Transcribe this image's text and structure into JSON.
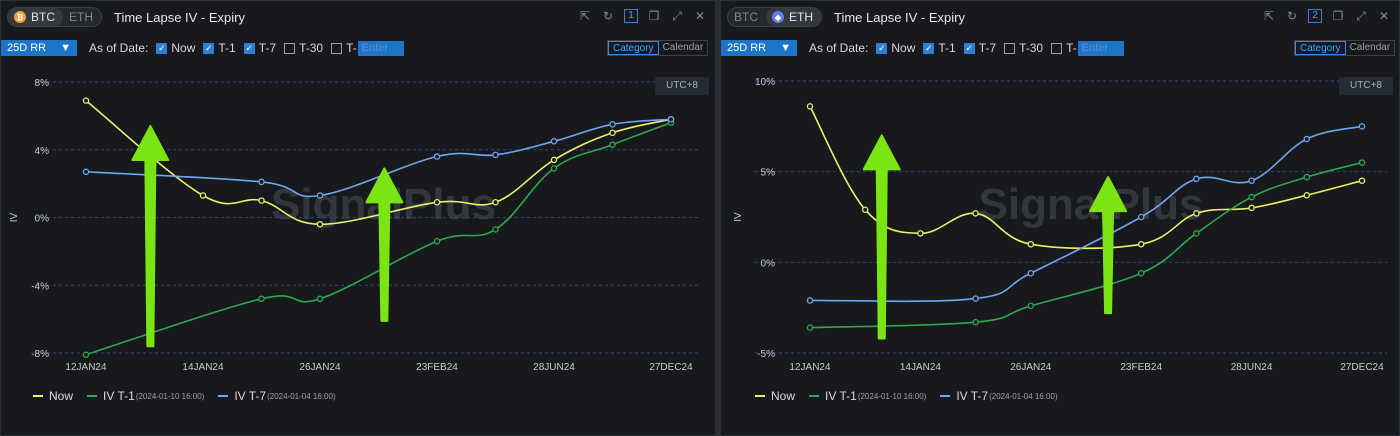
{
  "colors": {
    "now": "#eef06a",
    "t1": "#2fa84f",
    "t7": "#6ea6f0",
    "arrow": "#7be514",
    "accent": "#1b75c9"
  },
  "panels": [
    {
      "coins": [
        "BTC",
        "ETH"
      ],
      "active_coin": "BTC",
      "title": "Time Lapse IV - Expiry",
      "panel_number": "1",
      "metric": "25D RR",
      "as_of_label": "As of Date:",
      "checks": [
        {
          "label": "Now",
          "checked": true
        },
        {
          "label": "T-1",
          "checked": true
        },
        {
          "label": "T-7",
          "checked": true
        },
        {
          "label": "T-30",
          "checked": false
        },
        {
          "label": "T-",
          "checked": false
        }
      ],
      "enter_placeholder": "Enter",
      "view_toggle": [
        "Category",
        "Calendar"
      ],
      "timezone": "UTC+8",
      "watermark": "SignalPlus",
      "legend": [
        {
          "label": "Now",
          "date": ""
        },
        {
          "label": "IV T-1",
          "date": "(2024-01-10 16:00)"
        },
        {
          "label": "IV T-7",
          "date": "(2024-01-04 16:00)"
        }
      ]
    },
    {
      "coins": [
        "BTC",
        "ETH"
      ],
      "active_coin": "ETH",
      "title": "Time Lapse IV - Expiry",
      "panel_number": "2",
      "metric": "25D RR",
      "as_of_label": "As of Date:",
      "checks": [
        {
          "label": "Now",
          "checked": true
        },
        {
          "label": "T-1",
          "checked": true
        },
        {
          "label": "T-7",
          "checked": true
        },
        {
          "label": "T-30",
          "checked": false
        },
        {
          "label": "T-",
          "checked": false
        }
      ],
      "enter_placeholder": "Enter",
      "view_toggle": [
        "Category",
        "Calendar"
      ],
      "timezone": "UTC+8",
      "watermark": "SignalPlus",
      "legend": [
        {
          "label": "Now",
          "date": ""
        },
        {
          "label": "IV T-1",
          "date": "(2024-01-10 16:00)"
        },
        {
          "label": "IV T-7",
          "date": "(2024-01-04 16:00)"
        }
      ]
    }
  ],
  "chart_data": [
    {
      "type": "line",
      "ylabel": "IV",
      "ylim": [
        -8,
        8
      ],
      "yticks": [
        8,
        4,
        0,
        -4,
        -8
      ],
      "ytick_labels": [
        "8%",
        "4%",
        "0%",
        "-4%",
        "-8%"
      ],
      "x_tick_labels": [
        "12JAN24",
        "14JAN24",
        "26JAN24",
        "23FEB24",
        "28JUN24",
        "27DEC24"
      ],
      "x_tick_positions": [
        0,
        2,
        4,
        6,
        8,
        10
      ],
      "grid": true,
      "legend": "bottom-left",
      "series": [
        {
          "name": "Now",
          "x": [
            0,
            2,
            3,
            4,
            6,
            7,
            8,
            9,
            10
          ],
          "values": [
            6.9,
            1.3,
            1.0,
            -0.4,
            0.9,
            0.9,
            3.4,
            5.0,
            5.8
          ]
        },
        {
          "name": "IV T-1",
          "x": [
            0,
            3,
            4,
            6,
            7,
            8,
            9,
            10
          ],
          "values": [
            -8.1,
            -4.8,
            -4.8,
            -1.4,
            -0.7,
            2.9,
            4.3,
            5.6
          ]
        },
        {
          "name": "IV T-7",
          "x": [
            0,
            3,
            4,
            6,
            7,
            8,
            9,
            10
          ],
          "values": [
            2.7,
            2.1,
            1.3,
            3.6,
            3.7,
            4.5,
            5.5,
            5.8
          ]
        }
      ],
      "annotations": [
        {
          "type": "arrow",
          "direction": "up",
          "x": 1.1,
          "y_from": -7.6,
          "y_to": 5.4
        },
        {
          "type": "arrow",
          "direction": "up",
          "x": 5.1,
          "y_from": -6.1,
          "y_to": 2.9
        }
      ]
    },
    {
      "type": "line",
      "ylabel": "IV",
      "ylim": [
        -5,
        10
      ],
      "yticks": [
        10,
        5,
        0,
        -5
      ],
      "ytick_labels": [
        "10%",
        "5%",
        "0%",
        "-5%"
      ],
      "x_tick_labels": [
        "12JAN24",
        "14JAN24",
        "26JAN24",
        "23FEB24",
        "28JUN24",
        "27DEC24"
      ],
      "x_tick_positions": [
        0,
        2,
        4,
        6,
        8,
        10
      ],
      "grid": true,
      "legend": "bottom-left",
      "series": [
        {
          "name": "Now",
          "x": [
            0,
            1,
            2,
            3,
            4,
            6,
            7,
            8,
            9,
            10
          ],
          "values": [
            8.6,
            2.9,
            1.6,
            2.7,
            1.0,
            1.0,
            2.7,
            3.0,
            3.7,
            4.5
          ]
        },
        {
          "name": "IV T-1",
          "x": [
            0,
            3,
            4,
            6,
            7,
            8,
            9,
            10
          ],
          "values": [
            -3.6,
            -3.3,
            -2.4,
            -0.6,
            1.6,
            3.6,
            4.7,
            5.5
          ]
        },
        {
          "name": "IV T-7",
          "x": [
            0,
            3,
            4,
            6,
            7,
            8,
            9,
            10
          ],
          "values": [
            -2.1,
            -2.0,
            -0.6,
            2.5,
            4.6,
            4.5,
            6.8,
            7.5
          ]
        }
      ],
      "annotations": [
        {
          "type": "arrow",
          "direction": "up",
          "x": 1.3,
          "y_from": -4.2,
          "y_to": 7.0
        },
        {
          "type": "arrow",
          "direction": "up",
          "x": 5.4,
          "y_from": -2.8,
          "y_to": 4.7
        }
      ]
    }
  ]
}
